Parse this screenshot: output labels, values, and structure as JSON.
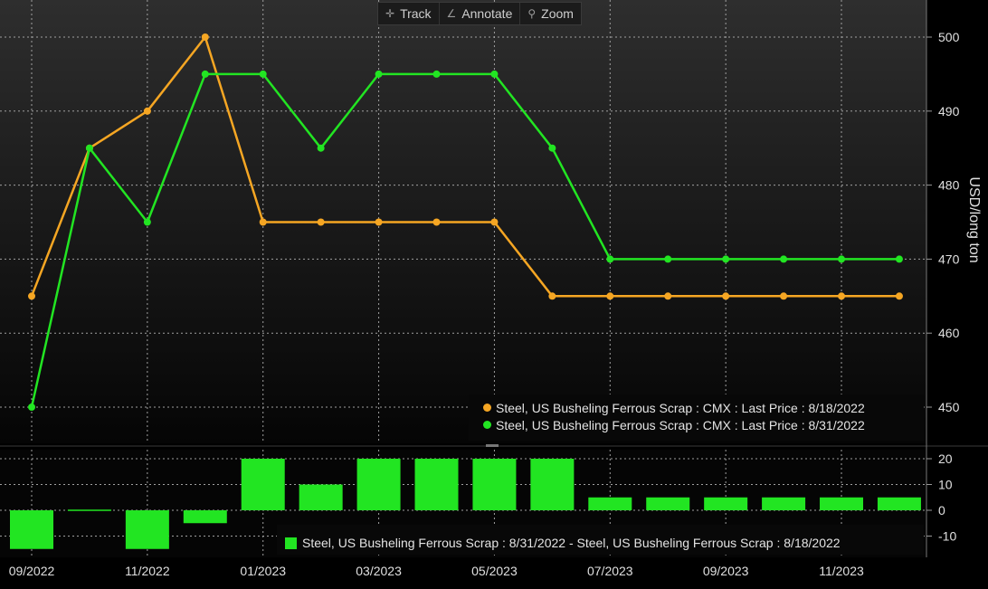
{
  "toolbar": {
    "track_label": "Track",
    "annotate_label": "Annotate",
    "zoom_label": "Zoom"
  },
  "colors": {
    "background": "#000000",
    "grid": "#9a9a9a",
    "series_orange": "#f5a623",
    "series_green": "#22e522"
  },
  "chart_data": [
    {
      "type": "line",
      "x": [
        "2022-09",
        "2022-10",
        "2022-11",
        "2022-12",
        "2023-01",
        "2023-02",
        "2023-03",
        "2023-04",
        "2023-05",
        "2023-06",
        "2023-07",
        "2023-08",
        "2023-09",
        "2023-10",
        "2023-11",
        "2023-12"
      ],
      "x_tick_labels": [
        "09/2022",
        "11/2022",
        "01/2023",
        "03/2023",
        "05/2023",
        "07/2023",
        "09/2023",
        "11/2023"
      ],
      "series": [
        {
          "name": "Steel, US Busheling Ferrous Scrap : CMX : Last Price : 8/18/2022",
          "color": "#f5a623",
          "values": [
            465,
            485,
            490,
            500,
            475,
            475,
            475,
            475,
            475,
            465,
            465,
            465,
            465,
            465,
            465,
            465
          ]
        },
        {
          "name": "Steel, US Busheling Ferrous Scrap : CMX : Last Price : 8/31/2022",
          "color": "#22e522",
          "values": [
            450,
            485,
            475,
            495,
            495,
            485,
            495,
            495,
            495,
            485,
            470,
            470,
            470,
            470,
            470,
            470
          ]
        }
      ],
      "ylabel": "USD/long ton",
      "ylim": [
        445,
        505
      ],
      "yticks": [
        450,
        460,
        470,
        480,
        490,
        500
      ],
      "grid": true,
      "legend_position": "bottom-right"
    },
    {
      "type": "bar",
      "x": [
        "2022-09",
        "2022-10",
        "2022-11",
        "2022-12",
        "2023-01",
        "2023-02",
        "2023-03",
        "2023-04",
        "2023-05",
        "2023-06",
        "2023-07",
        "2023-08",
        "2023-09",
        "2023-10",
        "2023-11",
        "2023-12"
      ],
      "series": [
        {
          "name": "Steel, US Busheling Ferrous Scrap : 8/31/2022 - Steel, US Busheling Ferrous Scrap : 8/18/2022",
          "color": "#22e522",
          "values": [
            -15,
            0,
            -15,
            -5,
            20,
            10,
            20,
            20,
            20,
            20,
            5,
            5,
            5,
            5,
            5,
            5
          ]
        }
      ],
      "ylim": [
        -17,
        24
      ],
      "yticks": [
        -10,
        0,
        10,
        20
      ],
      "grid": true,
      "legend_position": "bottom-right"
    }
  ]
}
